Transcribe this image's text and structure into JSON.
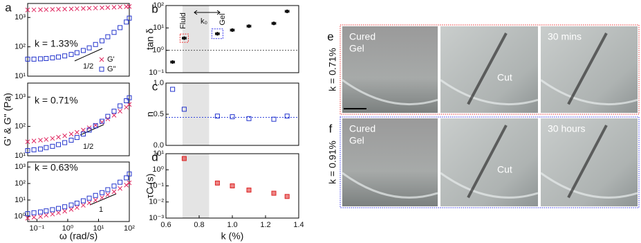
{
  "chart_data": [
    {
      "type": "scatter",
      "panel": "a",
      "xlog": true,
      "ylog": true,
      "xlim": [
        0.05,
        100
      ],
      "ylim": [
        10,
        3000
      ],
      "yticks": [
        {
          "value": 10,
          "label": "10¹"
        },
        {
          "value": 100,
          "label": "10²"
        },
        {
          "value": 1000,
          "label": "10³"
        }
      ],
      "annotations": [
        "k = 1.33%",
        "1/2"
      ],
      "legend": "lower right",
      "series": [
        {
          "name": "G'",
          "color": "#e0245e",
          "marker": "x",
          "x": [
            0.05,
            0.08,
            0.13,
            0.2,
            0.32,
            0.5,
            0.8,
            1.3,
            2,
            3.2,
            5,
            8,
            13,
            20,
            32,
            50,
            80,
            100
          ],
          "values": [
            1800,
            1820,
            1840,
            1860,
            1880,
            1900,
            1930,
            1960,
            1990,
            2020,
            2060,
            2100,
            2140,
            2180,
            2230,
            2280,
            2330,
            2370
          ]
        },
        {
          "name": "G\"",
          "color": "#2233cc",
          "marker": "square",
          "x": [
            0.05,
            0.08,
            0.13,
            0.2,
            0.32,
            0.5,
            0.8,
            1.3,
            2,
            3.2,
            5,
            8,
            13,
            20,
            32,
            50,
            80,
            100
          ],
          "values": [
            38,
            38,
            39,
            40,
            42,
            45,
            49,
            55,
            63,
            75,
            92,
            120,
            160,
            220,
            310,
            450,
            700,
            950
          ]
        }
      ]
    },
    {
      "type": "scatter",
      "xlog": true,
      "ylog": true,
      "xlim": [
        0.05,
        100
      ],
      "ylim": [
        10,
        3000
      ],
      "yticks": [
        {
          "value": 10,
          "label": "10¹"
        },
        {
          "value": 100,
          "label": "10²"
        },
        {
          "value": 1000,
          "label": "10³"
        }
      ],
      "ylabel": "G' & G\" (Pa)",
      "annotations": [
        "k = 0.71%",
        "1/2"
      ],
      "series": [
        {
          "color": "#e0245e",
          "marker": "x",
          "x": [
            0.05,
            0.08,
            0.13,
            0.2,
            0.32,
            0.5,
            0.8,
            1.3,
            2,
            3.2,
            5,
            8,
            13,
            20,
            32,
            50,
            80,
            100
          ],
          "values": [
            30,
            32,
            34,
            36,
            39,
            43,
            48,
            55,
            63,
            75,
            90,
            110,
            140,
            180,
            240,
            330,
            450,
            560
          ]
        },
        {
          "color": "#2233cc",
          "marker": "square",
          "x": [
            0.05,
            0.08,
            0.13,
            0.2,
            0.32,
            0.5,
            0.8,
            1.3,
            2,
            3.2,
            5,
            8,
            13,
            20,
            32,
            50,
            80,
            100
          ],
          "values": [
            15,
            16,
            17,
            19,
            21,
            24,
            28,
            34,
            42,
            55,
            75,
            105,
            150,
            220,
            330,
            500,
            750,
            950
          ]
        }
      ]
    },
    {
      "type": "scatter",
      "xlog": true,
      "ylog": true,
      "xlim": [
        0.05,
        100
      ],
      "ylim": [
        0.5,
        2000
      ],
      "xticks": [
        {
          "value": 0.1,
          "label": "10⁻¹"
        },
        {
          "value": 1,
          "label": "10⁰"
        },
        {
          "value": 10,
          "label": "10¹"
        },
        {
          "value": 100,
          "label": "10²"
        }
      ],
      "yticks": [
        {
          "value": 1,
          "label": "10⁰"
        },
        {
          "value": 10,
          "label": "10¹"
        },
        {
          "value": 100,
          "label": "10²"
        },
        {
          "value": 1000,
          "label": "10³"
        }
      ],
      "xlabel": "ω (rad/s)",
      "annotations": [
        "k = 0.63%",
        "1"
      ],
      "series": [
        {
          "color": "#e0245e",
          "marker": "x",
          "x": [
            0.05,
            0.08,
            0.13,
            0.2,
            0.32,
            0.5,
            0.8,
            1.3,
            2,
            3.2,
            5,
            8,
            13,
            20,
            32,
            50,
            80,
            100
          ],
          "values": [
            0.8,
            0.9,
            1.0,
            1.2,
            1.4,
            1.7,
            2.1,
            2.7,
            3.5,
            4.8,
            6.8,
            9.8,
            14,
            21,
            32,
            50,
            80,
            110
          ]
        },
        {
          "color": "#2233cc",
          "marker": "square",
          "x": [
            0.05,
            0.08,
            0.13,
            0.2,
            0.32,
            0.5,
            0.8,
            1.3,
            2,
            3.2,
            5,
            8,
            13,
            20,
            32,
            50,
            80,
            100
          ],
          "values": [
            1.5,
            1.7,
            1.9,
            2.2,
            2.6,
            3.1,
            3.9,
            5,
            6.5,
            9,
            13,
            19,
            28,
            42,
            70,
            120,
            220,
            380
          ]
        }
      ]
    },
    {
      "type": "scatter",
      "panel": "b",
      "ylog": true,
      "xlim": [
        0.6,
        1.4
      ],
      "ylim": [
        0.1,
        100
      ],
      "yticks": [
        {
          "value": 0.1,
          "label": "10⁻¹"
        },
        {
          "value": 1,
          "label": "10⁰"
        },
        {
          "value": 10,
          "label": "10¹"
        },
        {
          "value": 100,
          "label": "10²"
        }
      ],
      "ylabel": "tan δ",
      "shade": [
        0.7,
        0.86
      ],
      "hline": 1,
      "hline_color": "#555555",
      "annotations": [
        "Fluid",
        "k₀",
        "Gel"
      ],
      "series": [
        {
          "color": "#111111",
          "marker": "circle",
          "x": [
            0.64,
            0.71,
            0.91,
            1.0,
            1.1,
            1.25,
            1.33
          ],
          "values": [
            0.3,
            3.5,
            5.5,
            8,
            12,
            16,
            55
          ],
          "xerr": [
            0.012,
            0.012,
            0.012,
            0.012,
            0.012,
            0.012,
            0.012
          ]
        }
      ]
    },
    {
      "type": "scatter",
      "panel": "c",
      "xlim": [
        0.6,
        1.4
      ],
      "ylim": [
        0,
        1.0
      ],
      "yticks": [
        {
          "value": 0,
          "label": "0.0"
        },
        0.5,
        {
          "value": 1,
          "label": "1.0"
        }
      ],
      "ylabel": "n",
      "shade": [
        0.7,
        0.86
      ],
      "hline": 0.45,
      "hline_color": "#3344dd",
      "series": [
        {
          "color": "#2233cc",
          "marker": "square",
          "x": [
            0.64,
            0.71,
            0.91,
            1.0,
            1.1,
            1.25,
            1.33
          ],
          "values": [
            0.9,
            0.58,
            0.47,
            0.46,
            0.43,
            0.42,
            0.47
          ]
        }
      ]
    },
    {
      "type": "scatter",
      "panel": "d",
      "ylog": true,
      "xlim": [
        0.6,
        1.4
      ],
      "ylim": [
        0.001,
        10
      ],
      "xticks": [
        0.6,
        0.8,
        {
          "value": 1,
          "label": "1.0"
        },
        1.2,
        1.4
      ],
      "yticks": [
        {
          "value": 0.001,
          "label": "10⁻³"
        },
        {
          "value": 0.01,
          "label": "10⁻²"
        },
        {
          "value": 0.1,
          "label": "10⁻¹"
        },
        {
          "value": 1,
          "label": "10⁰"
        },
        {
          "value": 10,
          "label": "10¹"
        }
      ],
      "ylabel": "τC (s)",
      "xlabel": "k (%)",
      "shade": [
        0.7,
        0.86
      ],
      "series": [
        {
          "color": "#dd2222",
          "marker": "square",
          "x": [
            0.71,
            0.91,
            1.0,
            1.1,
            1.25,
            1.33
          ],
          "values": [
            5,
            0.15,
            0.1,
            0.055,
            0.035,
            0.022
          ]
        }
      ]
    }
  ],
  "photos": [
    {
      "panel": "e",
      "label": "k = 0.71%",
      "frames": [
        [
          "Cured",
          "Gel"
        ],
        [
          "Cut"
        ],
        [
          "30 mins"
        ]
      ]
    },
    {
      "panel": "f",
      "label": "k = 0.91%",
      "frames": [
        [
          "Cured",
          "Gel"
        ],
        [
          "Cut"
        ],
        [
          "30 hours"
        ]
      ]
    }
  ]
}
